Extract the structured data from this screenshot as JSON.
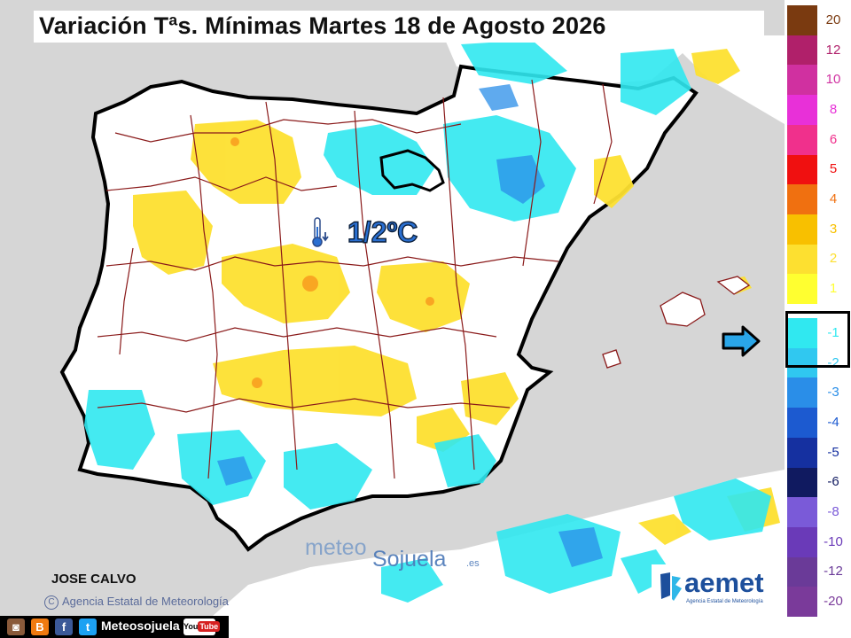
{
  "title": "Variación Tªs. Mínimas Martes 18 de Agosto 2026",
  "highlight_label": "1/2ºC",
  "author": "JOSE CALVO",
  "agency_credit": "Agencia Estatal de Meteorología",
  "watermark": {
    "part1": "meteo",
    "part2": "Sojuela",
    "suffix": ".es"
  },
  "aemet_logo": {
    "name": "aemet",
    "subtitle": "Agencia Estatal de Meteorología"
  },
  "social": {
    "handle": "Meteosojuela",
    "youtube_you": "You",
    "youtube_tube": "Tube",
    "icons": [
      "instagram-icon",
      "blogger-icon",
      "facebook-icon",
      "twitter-icon"
    ]
  },
  "legend": {
    "items": [
      {
        "label": "20",
        "color": "#7a3a10"
      },
      {
        "label": "12",
        "color": "#b0206a"
      },
      {
        "label": "10",
        "color": "#d030a0"
      },
      {
        "label": "8",
        "color": "#e830d8"
      },
      {
        "label": "6",
        "color": "#f0308c"
      },
      {
        "label": "5",
        "color": "#f01010"
      },
      {
        "label": "4",
        "color": "#f07010"
      },
      {
        "label": "3",
        "color": "#f8c000"
      },
      {
        "label": "2",
        "color": "#fde030"
      },
      {
        "label": "1",
        "color": "#ffff30"
      },
      {
        "label": "-1",
        "color": "#30e8f0"
      },
      {
        "label": "-2",
        "color": "#30c8f0"
      },
      {
        "label": "-3",
        "color": "#2a8ee8"
      },
      {
        "label": "-4",
        "color": "#1c5ad0"
      },
      {
        "label": "-5",
        "color": "#1530a0"
      },
      {
        "label": "-6",
        "color": "#101a60"
      },
      {
        "label": "-8",
        "color": "#7a5ad8"
      },
      {
        "label": "-10",
        "color": "#6a3ab8"
      },
      {
        "label": "-12",
        "color": "#6a3a98"
      },
      {
        "label": "-20",
        "color": "#7a3a9a"
      }
    ],
    "highlighted": [
      "-1",
      "-2"
    ]
  },
  "colors": {
    "sea": "#d6d6d6",
    "land_neutral": "#ffffff",
    "warm": "#fde030",
    "cool": "#30e8f0",
    "border_province": "#8a1a1a",
    "outline": "#000000"
  }
}
